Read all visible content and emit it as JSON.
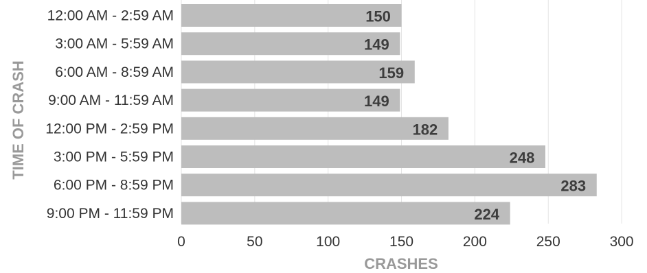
{
  "chart_data": {
    "type": "bar",
    "orientation": "horizontal",
    "title": "",
    "xlabel": "CRASHES",
    "ylabel": "TIME OF CRASH",
    "categories": [
      "12:00 AM - 2:59 AM",
      "3:00 AM - 5:59 AM",
      "6:00 AM - 8:59 AM",
      "9:00 AM - 11:59 AM",
      "12:00 PM - 2:59 PM",
      "3:00 PM - 5:59 PM",
      "6:00 PM - 8:59 PM",
      "9:00 PM - 11:59 PM"
    ],
    "values": [
      150,
      149,
      159,
      149,
      182,
      248,
      283,
      224
    ],
    "xlim": [
      0,
      300
    ],
    "xticks": [
      0,
      50,
      100,
      150,
      200,
      250,
      300
    ],
    "grid": true,
    "legend": "none",
    "colors": {
      "bar": "#bdbdbd",
      "grid": "#e3e3e3",
      "value_label": "#3d3d3d",
      "axis_title": "#999999"
    }
  }
}
